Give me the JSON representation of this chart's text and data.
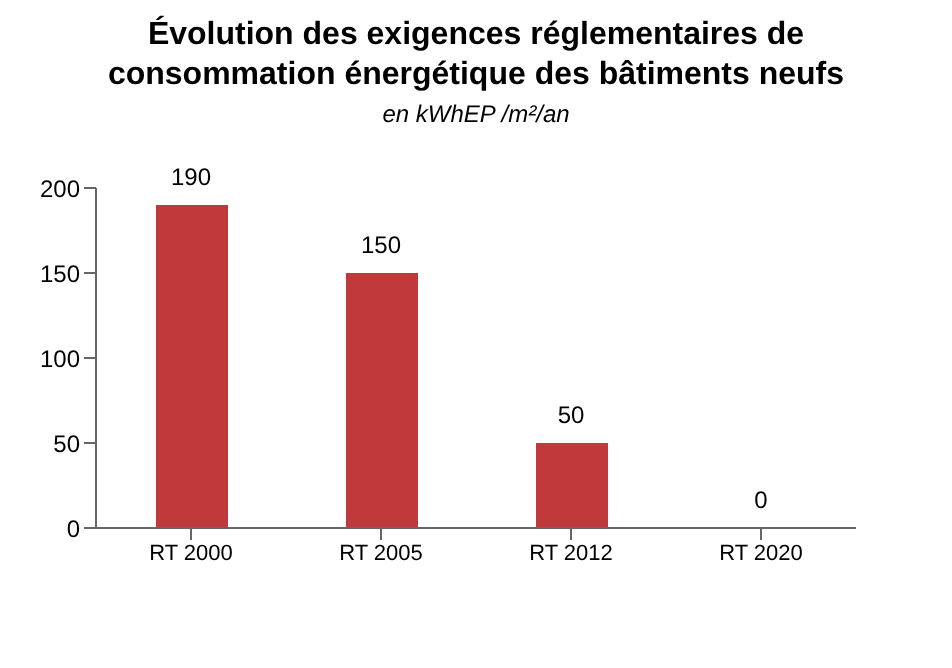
{
  "chart_data": {
    "type": "bar",
    "title": "Évolution des exigences réglementaires de consommation énergétique des bâtiments neufs",
    "subtitle": "en kWhEP /m²/an",
    "categories": [
      "RT 2000",
      "RT 2005",
      "RT 2012",
      "RT 2020"
    ],
    "values": [
      190,
      150,
      50,
      0
    ],
    "color": "#c0393b",
    "ylim": [
      0,
      200
    ],
    "yticks": [
      0,
      50,
      100,
      150,
      200
    ],
    "grid": false,
    "data_labels": true
  }
}
